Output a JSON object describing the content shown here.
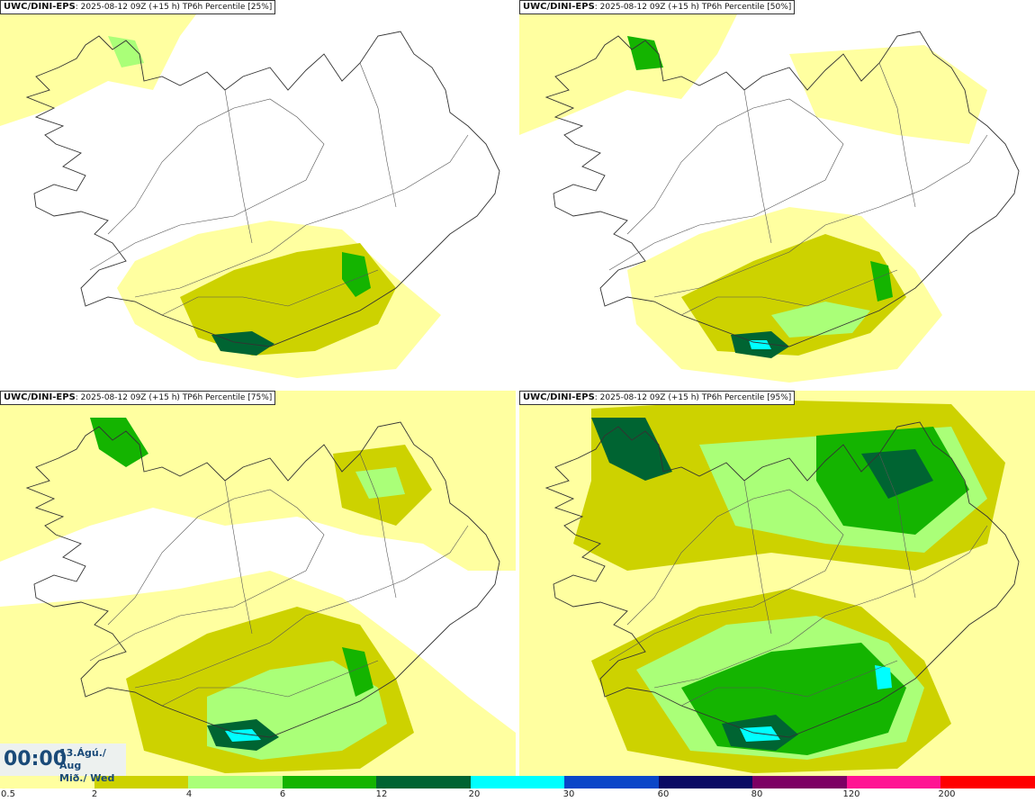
{
  "panels": [
    {
      "model": "UWC/DINI-EPS",
      "run": "2025-08-12 09Z",
      "lead": "(+15 h)",
      "field": "TP6h Percentile [25%]"
    },
    {
      "model": "UWC/DINI-EPS",
      "run": "2025-08-12 09Z",
      "lead": "(+15 h)",
      "field": "TP6h Percentile [50%]"
    },
    {
      "model": "UWC/DINI-EPS",
      "run": "2025-08-12 09Z",
      "lead": "(+15 h)",
      "field": "TP6h Percentile [75%]"
    },
    {
      "model": "UWC/DINI-EPS",
      "run": "2025-08-12 09Z",
      "lead": "(+15 h)",
      "field": "TP6h Percentile [95%]"
    }
  ],
  "valid_time": {
    "time": "00:00",
    "date": "13.Ágú./ Aug",
    "weekday": "Mið./ Wed"
  },
  "legend": {
    "colors": [
      "#ffffa0",
      "#cdd200",
      "#aaff78",
      "#14b400",
      "#006432",
      "#00ffff",
      "#0a46c8",
      "#0a0a64",
      "#7d0064",
      "#ff1493",
      "#ff0000"
    ],
    "ticks": [
      "0.5",
      "2",
      "4",
      "6",
      "12",
      "20",
      "30",
      "60",
      "80",
      "120",
      "200"
    ]
  },
  "shades": {
    "light": "#ffffa0",
    "mid": "#cdd200",
    "pale": "#aaff78",
    "green": "#14b400",
    "dark": "#006432",
    "cyan": "#00ffff"
  }
}
